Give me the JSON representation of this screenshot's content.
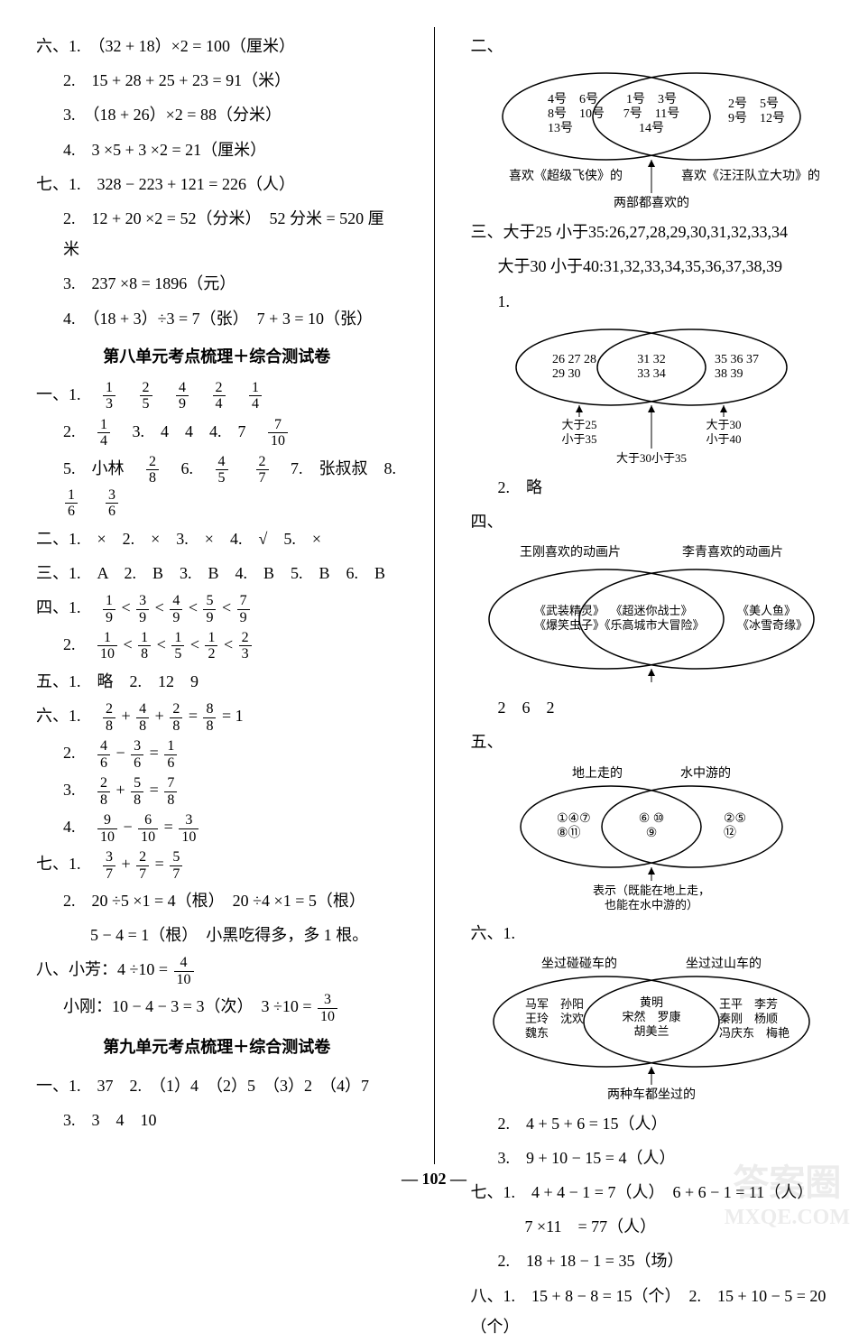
{
  "left": {
    "six": {
      "label": "六、1.",
      "items": [
        "（32 + 18）×2 = 100（厘米）",
        "2.　15 + 28 + 25 + 23 = 91（米）",
        "3.　（18 + 26）×2 = 88（分米）",
        "4.　3 ×5 + 3 ×2 = 21（厘米）"
      ]
    },
    "seven": {
      "label": "七、1.",
      "items": [
        "328 − 223 + 121 = 226（人）",
        "2.　12 + 20 ×2 = 52（分米）　52 分米 = 520 厘米",
        "3.　237 ×8 = 1896（元）",
        "4.　（18 + 3）÷3 = 7（张）　7 + 3 = 10（张）"
      ]
    },
    "title8": "第八单元考点梳理＋综合测试卷",
    "one8": {
      "label": "一、1.",
      "row1": [
        [
          "1",
          "3"
        ],
        [
          "2",
          "5"
        ],
        [
          "4",
          "9"
        ],
        [
          "2",
          "4"
        ],
        [
          "1",
          "4"
        ]
      ],
      "row2_label": "2.",
      "row2_frac": [
        "1",
        "4"
      ],
      "row2_text": "　3.　4　4　4.　7　",
      "row2_frac2": [
        "7",
        "10"
      ],
      "row5_label": "5.　小林　",
      "row5_frac1": [
        "2",
        "8"
      ],
      "row5_text1": "　6.　",
      "row5_frac2": [
        "4",
        "5"
      ],
      "row5_text2": "　",
      "row5_frac3": [
        "2",
        "7"
      ],
      "row5_text3": "　7.　张叔叔　8.　",
      "row5_frac4": [
        "1",
        "6"
      ],
      "row5_text4": "　",
      "row5_frac5": [
        "3",
        "6"
      ]
    },
    "two8": "二、1.　×　2.　×　3.　×　4.　√　5.　×",
    "three8": "三、1.　A　2.　B　3.　B　4.　B　5.　B　6.　B",
    "four8": {
      "label": "四、1.",
      "seq1": [
        [
          "1",
          "9"
        ],
        [
          "3",
          "9"
        ],
        [
          "4",
          "9"
        ],
        [
          "5",
          "9"
        ],
        [
          "7",
          "9"
        ]
      ],
      "label2": "2.",
      "seq2": [
        [
          "1",
          "10"
        ],
        [
          "1",
          "8"
        ],
        [
          "1",
          "5"
        ],
        [
          "1",
          "2"
        ],
        [
          "2",
          "3"
        ]
      ]
    },
    "five8": "五、1.　略　2.　12　9",
    "six8": {
      "label": "六、1.",
      "eq1_parts": [
        [
          "2",
          "8"
        ],
        "+",
        [
          "4",
          "8"
        ],
        "+",
        [
          "2",
          "8"
        ],
        "=",
        [
          "8",
          "8"
        ],
        "= 1"
      ],
      "eq2_label": "2.",
      "eq2_parts": [
        [
          "4",
          "6"
        ],
        "−",
        [
          "3",
          "6"
        ],
        "=",
        [
          "1",
          "6"
        ]
      ],
      "eq3_label": "3.",
      "eq3_parts": [
        [
          "2",
          "8"
        ],
        "+",
        [
          "5",
          "8"
        ],
        "=",
        [
          "7",
          "8"
        ]
      ],
      "eq4_label": "4.",
      "eq4_parts": [
        [
          "9",
          "10"
        ],
        "−",
        [
          "6",
          "10"
        ],
        "=",
        [
          "3",
          "10"
        ]
      ]
    },
    "seven8": {
      "label": "七、1.",
      "eq1_parts": [
        [
          "3",
          "7"
        ],
        "+",
        [
          "2",
          "7"
        ],
        "=",
        [
          "5",
          "7"
        ]
      ],
      "line2": "2.　20 ÷5 ×1 = 4（根）　20 ÷4 ×1 = 5（根）",
      "line3": "5 − 4 = 1（根）　小黑吃得多，多 1 根。"
    },
    "eight8": {
      "label": "八、小芳：4 ÷10 =",
      "frac1": [
        "4",
        "10"
      ],
      "label2": "小刚：10 − 4 − 3 = 3（次）　3 ÷10 =",
      "frac2": [
        "3",
        "10"
      ]
    },
    "title9": "第九单元考点梳理＋综合测试卷",
    "one9_line1": "一、1.　37　2.　（1）4　（2）5　（3）2　（4）7",
    "one9_line2": "3.　3　4　10"
  },
  "right": {
    "two_label": "二、",
    "venn1": {
      "left_items": "4号　6号\n8号　10号\n13号",
      "mid_items": "1号　3号\n7号　11号\n14号",
      "right_items": "2号　5号\n9号　12号",
      "left_caption": "喜欢《超级飞侠》的",
      "right_caption": "喜欢《汪汪队立大功》的",
      "bottom_caption": "两部都喜欢的"
    },
    "three_label": "三、大于25 小于35:26,27,28,29,30,31,32,33,34",
    "three_line2": "大于30 小于40:31,32,33,34,35,36,37,38,39",
    "three_sub1": "1.",
    "venn2": {
      "left_items": "26 27 28\n29 30",
      "mid_items": "31 32\n33 34",
      "right_items": "35 36 37\n38 39",
      "left_caption": "大于25\n小于35",
      "right_caption": "大于30\n小于40",
      "bottom_caption": "大于30小于35"
    },
    "three_sub2": "2.　略",
    "four_label": "四、",
    "venn3": {
      "top_left": "王刚喜欢的动画片",
      "top_right": "李青喜欢的动画片",
      "left_items": "《武装精灵》\n《爆笑虫子》",
      "mid_items": "《超迷你战士》\n《乐高城市大冒险》",
      "right_items": "《美人鱼》\n《冰雪奇缘》"
    },
    "four_line2": "2　6　2",
    "five_label": "五、",
    "venn4": {
      "top_left": "地上走的",
      "top_right": "水中游的",
      "left_items": "①④⑦\n⑧⑪",
      "mid_items": "⑥ ⑩\n⑨",
      "right_items": "②⑤\n⑫",
      "bottom_caption": "表示（既能在地上走，\n也能在水中游的）"
    },
    "six_label": "六、1.",
    "venn5": {
      "top_left": "坐过碰碰车的",
      "top_right": "坐过过山车的",
      "left_items": "马军　孙阳\n王玲　沈欢\n魏东",
      "mid_items": "黄明\n宋然　罗康\n胡美兰",
      "right_items": "王平　李芳\n秦刚　杨顺\n冯庆东　梅艳",
      "bottom_caption": "两种车都坐过的"
    },
    "six_line2": "2.　4 + 5 + 6 = 15（人）",
    "six_line3": "3.　9 + 10 − 15 = 4（人）",
    "seven_label": "七、1.　4 + 4 − 1 = 7（人）　6 + 6 − 1 = 11（人）",
    "seven_line2": "7 ×11　= 77（人）",
    "seven_line3": "2.　18 + 18 − 1 = 35（场）",
    "eight_label": "八、1.　15 + 8 − 8 = 15（个）　2.　15 + 10 − 5 = 20（个）"
  },
  "page_num": "— 102 —",
  "watermark1": "答案圈",
  "watermark2": "MXQE.COM",
  "colors": {
    "text": "#000000",
    "bg": "#ffffff",
    "watermark": "#999999"
  }
}
